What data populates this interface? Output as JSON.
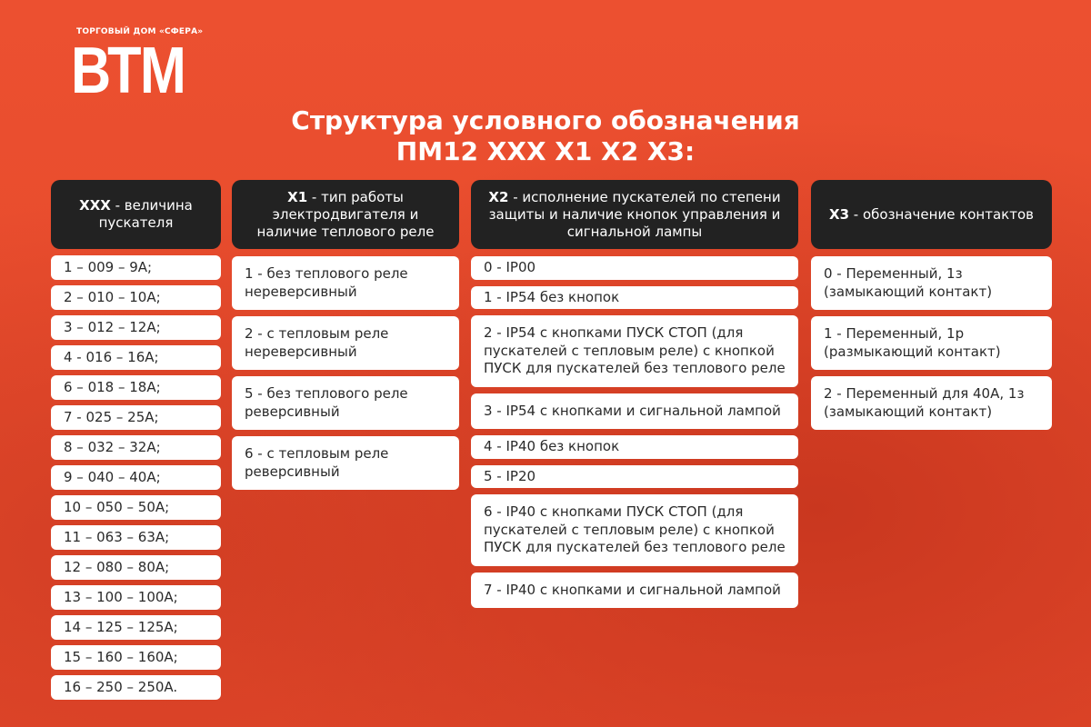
{
  "logo": {
    "subtitle": "ТОРГОВЫЙ ДОМ «СФЕРА»",
    "name": "ВТМ"
  },
  "title": {
    "line1": "Структура условного обозначения",
    "line2": "ПМ12 XXX X1 X2 X3:"
  },
  "columns": [
    {
      "key": "XXX",
      "desc": " - величина пускателя",
      "items": [
        "1 – 009 – 9A;",
        "2 – 010 – 10A;",
        "3 – 012 – 12A;",
        "4 - 016 – 16A;",
        "6 – 018 – 18A;",
        "7 - 025 – 25A;",
        "8 – 032 – 32A;",
        "9 – 040 – 40A;",
        "10 – 050 – 50A;",
        "11 – 063 – 63A;",
        "12 – 080 – 80A;",
        "13 – 100 – 100A;",
        "14 – 125 – 125A;",
        "15 – 160 – 160A;",
        "16 – 250 – 250A."
      ]
    },
    {
      "key": "X1",
      "desc": " - тип работы электродвигателя и наличие теплового реле",
      "items": [
        "1 - без теплового реле нереверсивный",
        "2 - с тепловым реле нереверсивный",
        "5 - без теплового реле реверсивный",
        "6 - с тепловым реле реверсивный"
      ]
    },
    {
      "key": "X2",
      "desc": " - исполнение пускателей по степени защиты и наличие кнопок управления и сигнальной лампы",
      "items": [
        "0 - IP00",
        "1 - IP54 без кнопок",
        "2 - IP54 с кнопками ПУСК СТОП (для пускателей с тепловым реле) с кнопкой ПУСК для пускателей без теплового реле",
        "3 - IP54 с кнопками и сигнальной лампой",
        "4 - IP40 без кнопок",
        "5 - IP20",
        "6 - IP40 с кнопками ПУСК СТОП (для пускателей с тепловым реле) с кнопкой ПУСК для пускателей без теплового реле",
        "7 - IP40 с кнопками и сигнальной лампой"
      ]
    },
    {
      "key": "X3",
      "desc": " - обозначение контактов",
      "items": [
        "0 - Переменный, 1з (замыкающий контакт)",
        "1 - Переменный, 1р (размыкающий контакт)",
        "2 - Переменный для 40А, 1з (замыкающий контакт)"
      ]
    }
  ],
  "colors": {
    "background": "#e64a2c",
    "header": "#222222",
    "card": "#ffffff"
  }
}
